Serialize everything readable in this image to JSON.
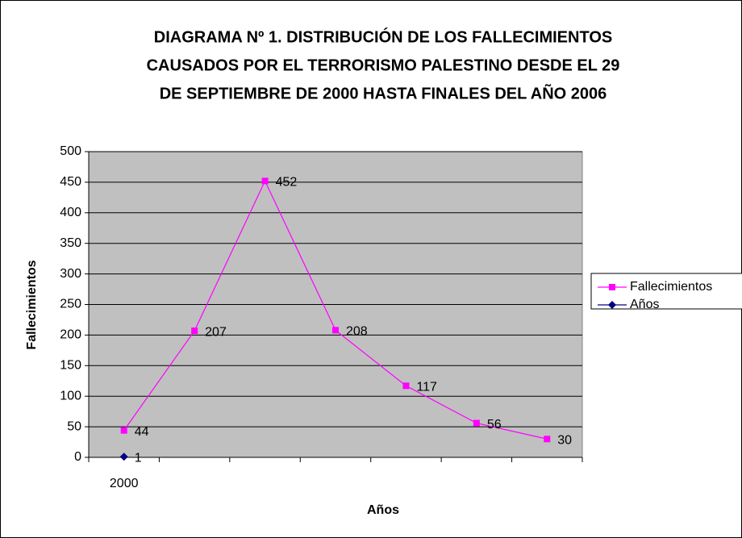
{
  "chart_data": {
    "type": "line",
    "title": [
      "DIAGRAMA Nº 1. DISTRIBUCIÓN DE LOS FALLECIMIENTOS",
      "CAUSADOS POR EL TERRORISMO PALESTINO DESDE EL 29",
      "DE SEPTIEMBRE DE 2000 HASTA FINALES DEL AÑO 2006"
    ],
    "x_label": "Años",
    "y_label": "Fallecimientos",
    "categories": [
      "2000",
      null,
      null,
      null,
      null,
      null,
      null
    ],
    "series": [
      {
        "name": "Fallecimientos",
        "color": "#ff00ff",
        "marker": "square",
        "values": [
          44,
          207,
          452,
          208,
          117,
          56,
          30
        ]
      },
      {
        "name": "Años",
        "color": "#000080",
        "marker": "diamond",
        "values": [
          1,
          null,
          null,
          null,
          null,
          null,
          null
        ]
      }
    ],
    "ylim": [
      0,
      500
    ],
    "yticks": [
      0,
      50,
      100,
      150,
      200,
      250,
      300,
      350,
      400,
      450,
      500
    ],
    "grid": true,
    "legend": "right",
    "plot_background": "#c0c0c0"
  }
}
